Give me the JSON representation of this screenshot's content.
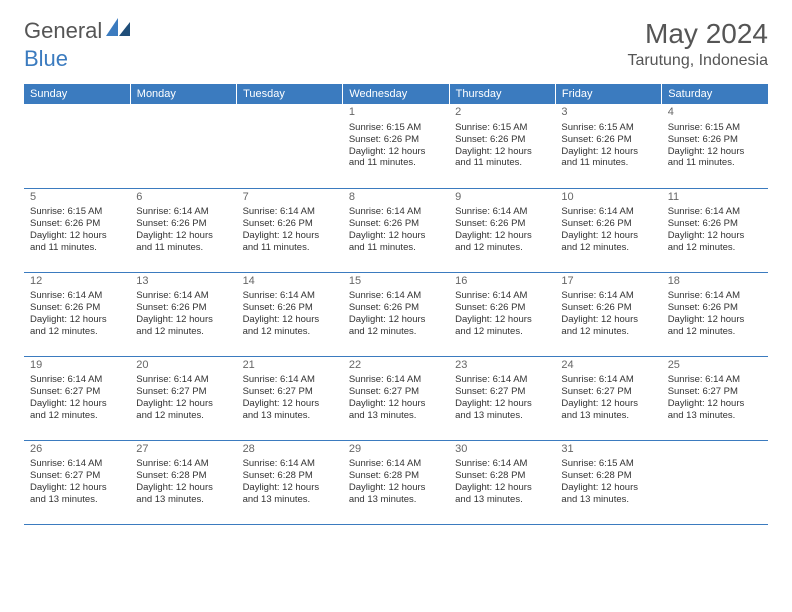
{
  "logo": {
    "general": "General",
    "blue": "Blue"
  },
  "title": "May 2024",
  "location": "Tarutung, Indonesia",
  "colors": {
    "header_bg": "#3b7bbf",
    "header_text": "#ffffff",
    "border": "#3b7bbf",
    "daynum": "#666666",
    "body_text": "#333333",
    "logo_blue": "#3b7bbf"
  },
  "typography": {
    "title_fontsize": 28,
    "location_fontsize": 16,
    "weekday_fontsize": 11,
    "daynum_fontsize": 11,
    "cell_fontsize": 9.5
  },
  "weekdays": [
    "Sunday",
    "Monday",
    "Tuesday",
    "Wednesday",
    "Thursday",
    "Friday",
    "Saturday"
  ],
  "weeks": [
    [
      {
        "day": "",
        "sunrise": "",
        "sunset": "",
        "daylight": ""
      },
      {
        "day": "",
        "sunrise": "",
        "sunset": "",
        "daylight": ""
      },
      {
        "day": "",
        "sunrise": "",
        "sunset": "",
        "daylight": ""
      },
      {
        "day": "1",
        "sunrise": "Sunrise: 6:15 AM",
        "sunset": "Sunset: 6:26 PM",
        "daylight": "Daylight: 12 hours and 11 minutes."
      },
      {
        "day": "2",
        "sunrise": "Sunrise: 6:15 AM",
        "sunset": "Sunset: 6:26 PM",
        "daylight": "Daylight: 12 hours and 11 minutes."
      },
      {
        "day": "3",
        "sunrise": "Sunrise: 6:15 AM",
        "sunset": "Sunset: 6:26 PM",
        "daylight": "Daylight: 12 hours and 11 minutes."
      },
      {
        "day": "4",
        "sunrise": "Sunrise: 6:15 AM",
        "sunset": "Sunset: 6:26 PM",
        "daylight": "Daylight: 12 hours and 11 minutes."
      }
    ],
    [
      {
        "day": "5",
        "sunrise": "Sunrise: 6:15 AM",
        "sunset": "Sunset: 6:26 PM",
        "daylight": "Daylight: 12 hours and 11 minutes."
      },
      {
        "day": "6",
        "sunrise": "Sunrise: 6:14 AM",
        "sunset": "Sunset: 6:26 PM",
        "daylight": "Daylight: 12 hours and 11 minutes."
      },
      {
        "day": "7",
        "sunrise": "Sunrise: 6:14 AM",
        "sunset": "Sunset: 6:26 PM",
        "daylight": "Daylight: 12 hours and 11 minutes."
      },
      {
        "day": "8",
        "sunrise": "Sunrise: 6:14 AM",
        "sunset": "Sunset: 6:26 PM",
        "daylight": "Daylight: 12 hours and 11 minutes."
      },
      {
        "day": "9",
        "sunrise": "Sunrise: 6:14 AM",
        "sunset": "Sunset: 6:26 PM",
        "daylight": "Daylight: 12 hours and 12 minutes."
      },
      {
        "day": "10",
        "sunrise": "Sunrise: 6:14 AM",
        "sunset": "Sunset: 6:26 PM",
        "daylight": "Daylight: 12 hours and 12 minutes."
      },
      {
        "day": "11",
        "sunrise": "Sunrise: 6:14 AM",
        "sunset": "Sunset: 6:26 PM",
        "daylight": "Daylight: 12 hours and 12 minutes."
      }
    ],
    [
      {
        "day": "12",
        "sunrise": "Sunrise: 6:14 AM",
        "sunset": "Sunset: 6:26 PM",
        "daylight": "Daylight: 12 hours and 12 minutes."
      },
      {
        "day": "13",
        "sunrise": "Sunrise: 6:14 AM",
        "sunset": "Sunset: 6:26 PM",
        "daylight": "Daylight: 12 hours and 12 minutes."
      },
      {
        "day": "14",
        "sunrise": "Sunrise: 6:14 AM",
        "sunset": "Sunset: 6:26 PM",
        "daylight": "Daylight: 12 hours and 12 minutes."
      },
      {
        "day": "15",
        "sunrise": "Sunrise: 6:14 AM",
        "sunset": "Sunset: 6:26 PM",
        "daylight": "Daylight: 12 hours and 12 minutes."
      },
      {
        "day": "16",
        "sunrise": "Sunrise: 6:14 AM",
        "sunset": "Sunset: 6:26 PM",
        "daylight": "Daylight: 12 hours and 12 minutes."
      },
      {
        "day": "17",
        "sunrise": "Sunrise: 6:14 AM",
        "sunset": "Sunset: 6:26 PM",
        "daylight": "Daylight: 12 hours and 12 minutes."
      },
      {
        "day": "18",
        "sunrise": "Sunrise: 6:14 AM",
        "sunset": "Sunset: 6:26 PM",
        "daylight": "Daylight: 12 hours and 12 minutes."
      }
    ],
    [
      {
        "day": "19",
        "sunrise": "Sunrise: 6:14 AM",
        "sunset": "Sunset: 6:27 PM",
        "daylight": "Daylight: 12 hours and 12 minutes."
      },
      {
        "day": "20",
        "sunrise": "Sunrise: 6:14 AM",
        "sunset": "Sunset: 6:27 PM",
        "daylight": "Daylight: 12 hours and 12 minutes."
      },
      {
        "day": "21",
        "sunrise": "Sunrise: 6:14 AM",
        "sunset": "Sunset: 6:27 PM",
        "daylight": "Daylight: 12 hours and 13 minutes."
      },
      {
        "day": "22",
        "sunrise": "Sunrise: 6:14 AM",
        "sunset": "Sunset: 6:27 PM",
        "daylight": "Daylight: 12 hours and 13 minutes."
      },
      {
        "day": "23",
        "sunrise": "Sunrise: 6:14 AM",
        "sunset": "Sunset: 6:27 PM",
        "daylight": "Daylight: 12 hours and 13 minutes."
      },
      {
        "day": "24",
        "sunrise": "Sunrise: 6:14 AM",
        "sunset": "Sunset: 6:27 PM",
        "daylight": "Daylight: 12 hours and 13 minutes."
      },
      {
        "day": "25",
        "sunrise": "Sunrise: 6:14 AM",
        "sunset": "Sunset: 6:27 PM",
        "daylight": "Daylight: 12 hours and 13 minutes."
      }
    ],
    [
      {
        "day": "26",
        "sunrise": "Sunrise: 6:14 AM",
        "sunset": "Sunset: 6:27 PM",
        "daylight": "Daylight: 12 hours and 13 minutes."
      },
      {
        "day": "27",
        "sunrise": "Sunrise: 6:14 AM",
        "sunset": "Sunset: 6:28 PM",
        "daylight": "Daylight: 12 hours and 13 minutes."
      },
      {
        "day": "28",
        "sunrise": "Sunrise: 6:14 AM",
        "sunset": "Sunset: 6:28 PM",
        "daylight": "Daylight: 12 hours and 13 minutes."
      },
      {
        "day": "29",
        "sunrise": "Sunrise: 6:14 AM",
        "sunset": "Sunset: 6:28 PM",
        "daylight": "Daylight: 12 hours and 13 minutes."
      },
      {
        "day": "30",
        "sunrise": "Sunrise: 6:14 AM",
        "sunset": "Sunset: 6:28 PM",
        "daylight": "Daylight: 12 hours and 13 minutes."
      },
      {
        "day": "31",
        "sunrise": "Sunrise: 6:15 AM",
        "sunset": "Sunset: 6:28 PM",
        "daylight": "Daylight: 12 hours and 13 minutes."
      },
      {
        "day": "",
        "sunrise": "",
        "sunset": "",
        "daylight": ""
      }
    ]
  ]
}
